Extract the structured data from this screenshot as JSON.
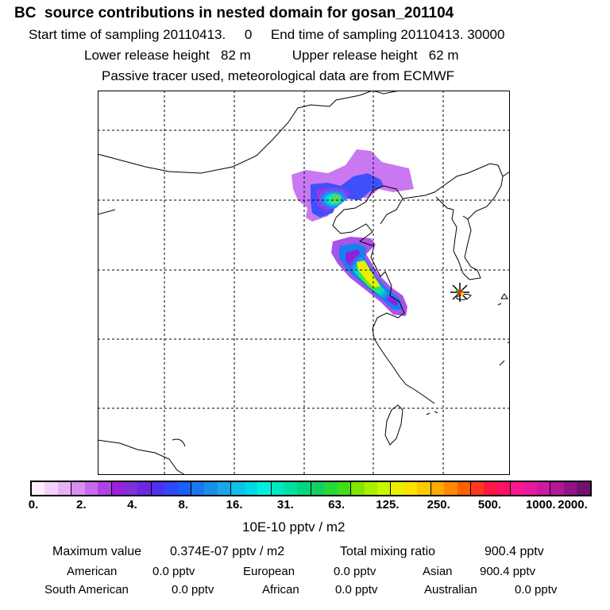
{
  "header": {
    "title": "BC  source contributions in nested domain for gosan_201104",
    "sampling_line": "Start time of sampling 20110413.     0     End time of sampling 20110413. 30000",
    "height_line": "Lower release height   82 m           Upper release height   62 m",
    "tracer_line": "Passive tracer used, meteorological data are from ECMWF"
  },
  "map": {
    "region": "East Asia nested domain",
    "receptor": "gosan",
    "receptor_icon": "star-marker-icon",
    "colors": {
      "coast": "#000000",
      "grid": "#000000"
    }
  },
  "colorbar": {
    "colors": [
      "#fff0ff",
      "#f5d0fa",
      "#e8b0f5",
      "#d890f0",
      "#c868ec",
      "#b040e8",
      "#9a20e0",
      "#8030d8",
      "#6a28e4",
      "#5030f0",
      "#3048f8",
      "#1860f8",
      "#1878f0",
      "#1890e8",
      "#18a8e8",
      "#10c0e8",
      "#00d8e8",
      "#00f0e0",
      "#00e8c0",
      "#00e0a0",
      "#00d880",
      "#10d060",
      "#28d838",
      "#40e018",
      "#80e800",
      "#a8f000",
      "#c8f800",
      "#e8f000",
      "#ffe000",
      "#ffc800",
      "#ffa800",
      "#ff8800",
      "#ff6000",
      "#ff3820",
      "#ff1840",
      "#ff1068",
      "#f81890",
      "#e818a0",
      "#d018a0",
      "#b01898",
      "#901488",
      "#701070"
    ],
    "major_every": 3,
    "labels": [
      "0.",
      "2.",
      "4.",
      "8.",
      "16.",
      "31.",
      "63.",
      "125.",
      "250.",
      "500.",
      "1000.",
      "2000."
    ],
    "units": "10E-10 pptv / m2"
  },
  "summary": {
    "maximum_label": "Maximum value",
    "maximum_value": "0.374E-07 pptv / m2",
    "total_label": "Total mixing ratio",
    "total_value": "900.4 pptv",
    "sources": [
      {
        "name": "American",
        "value": "0.0 pptv"
      },
      {
        "name": "European",
        "value": "0.0 pptv"
      },
      {
        "name": "Asian",
        "value": "900.4 pptv"
      },
      {
        "name": "South American",
        "value": "0.0 pptv"
      },
      {
        "name": "African",
        "value": "0.0 pptv"
      },
      {
        "name": "Australian",
        "value": "0.0 pptv"
      }
    ]
  }
}
